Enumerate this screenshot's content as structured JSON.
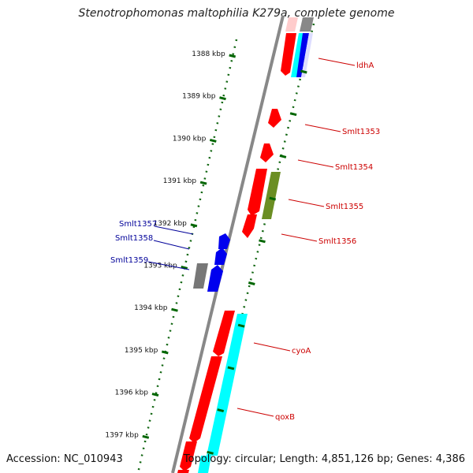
{
  "title": "Stenotrophomonas maltophilia K279a, complete genome",
  "footer": {
    "accession": "Accession: NC_010943",
    "topology": "Topology: circular; Length: 4,851,126 bp; Genes: 4,386"
  },
  "scale_labels": [
    "1388 kbp",
    "1389 kbp",
    "1390 kbp",
    "1391 kbp",
    "1392 kbp",
    "1393 kbp",
    "1394 kbp",
    "1395 kbp",
    "1396 kbp",
    "1397 kbp"
  ],
  "gene_labels_right": [
    "ldhA",
    "Smlt1353",
    "Smlt1354",
    "Smlt1355",
    "Smlt1356",
    "cyoA",
    "qoxB"
  ],
  "gene_labels_left": [
    "Smlt1357",
    "Smlt1358",
    "Smlt1359"
  ],
  "colors": {
    "forward": "#ff0000",
    "reverse": "#0000ee",
    "cyan": "#00ffff",
    "olive": "#6b8e23",
    "gray": "#777777",
    "label_red": "#cc0000",
    "label_blue": "#000099",
    "tick_green": "#006600"
  }
}
